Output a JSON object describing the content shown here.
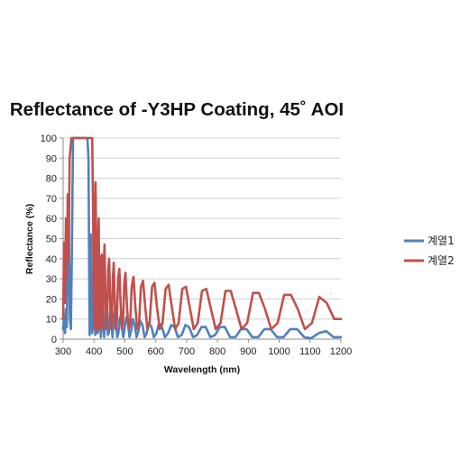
{
  "chart_data": {
    "type": "line",
    "title": "Reflectance of -Y3HP Coating, 45˚ AOI",
    "xlabel": "Wavelength (nm)",
    "ylabel": "Reflectance (%)",
    "xlim": [
      300,
      1200
    ],
    "ylim": [
      0,
      100
    ],
    "x_ticks": [
      300,
      400,
      500,
      600,
      700,
      800,
      900,
      1000,
      1100,
      1200
    ],
    "y_ticks": [
      0,
      10,
      20,
      30,
      40,
      50,
      60,
      70,
      80,
      90,
      100
    ],
    "grid": "horizontal",
    "legend_position": "right",
    "series": [
      {
        "name": "계열1",
        "color": "#4f81bd",
        "x": [
          300,
          303,
          306,
          309,
          312,
          315,
          318,
          320,
          322,
          325,
          328,
          332,
          338,
          345,
          355,
          365,
          372,
          376,
          379,
          382,
          384,
          386,
          388,
          390,
          392,
          394,
          396,
          398,
          400,
          402,
          404,
          406,
          408,
          410,
          412,
          414,
          416,
          418,
          420,
          422,
          424,
          426,
          428,
          430,
          433,
          436,
          439,
          442,
          445,
          448,
          451,
          454,
          457,
          460,
          463,
          467,
          471,
          475,
          479,
          483,
          487,
          491,
          495,
          500,
          505,
          510,
          515,
          520,
          526,
          532,
          538,
          544,
          550,
          557,
          564,
          571,
          578,
          586,
          594,
          602,
          611,
          620,
          630,
          640,
          650,
          661,
          672,
          684,
          696,
          708,
          721,
          734,
          748,
          762,
          777,
          792,
          808,
          824,
          841,
          858,
          876,
          894,
          913,
          932,
          952,
          972,
          993,
          1014,
          1036,
          1058,
          1081,
          1104,
          1128,
          1152,
          1176,
          1200
        ],
        "values": [
          5,
          12,
          3,
          15,
          6,
          45,
          60,
          35,
          10,
          5,
          40,
          100,
          100,
          100,
          100,
          100,
          100,
          100,
          99,
          90,
          45,
          2,
          20,
          52,
          10,
          3,
          8,
          30,
          40,
          12,
          2,
          8,
          25,
          18,
          3,
          5,
          20,
          28,
          10,
          1,
          6,
          18,
          20,
          8,
          1,
          10,
          18,
          12,
          2,
          3,
          12,
          15,
          6,
          1,
          8,
          14,
          9,
          1,
          3,
          10,
          12,
          5,
          1,
          6,
          11,
          8,
          1,
          4,
          10,
          7,
          1,
          4,
          9,
          7,
          1,
          3,
          8,
          6,
          1,
          3,
          8,
          6,
          1,
          3,
          7,
          6,
          1,
          2,
          7,
          6,
          1,
          2,
          6,
          6,
          1,
          2,
          6,
          6,
          1,
          1,
          5,
          5,
          1,
          1,
          5,
          5,
          1,
          1,
          5,
          5,
          1,
          0.5,
          3,
          4,
          1,
          1
        ]
      },
      {
        "name": "계열2",
        "color": "#c0504d",
        "x": [
          300,
          303,
          306,
          309,
          312,
          315,
          318,
          321,
          324,
          327,
          330,
          335,
          340,
          350,
          360,
          370,
          380,
          385,
          388,
          391,
          394,
          397,
          399,
          401,
          403,
          405,
          407,
          409,
          411,
          413,
          415,
          417,
          419,
          421,
          423,
          425,
          427,
          429,
          431,
          434,
          437,
          440,
          443,
          446,
          449,
          452,
          455,
          458,
          461,
          464,
          467,
          470,
          474,
          478,
          482,
          486,
          490,
          494,
          498,
          502,
          507,
          512,
          517,
          522,
          528,
          534,
          540,
          546,
          552,
          559,
          566,
          573,
          580,
          588,
          596,
          604,
          613,
          622,
          632,
          642,
          652,
          663,
          674,
          686,
          698,
          710,
          723,
          736,
          750,
          764,
          779,
          794,
          810,
          826,
          843,
          860,
          878,
          896,
          915,
          934,
          954,
          974,
          995,
          1016,
          1038,
          1060,
          1083,
          1106,
          1130,
          1154,
          1178,
          1200
        ],
        "values": [
          10,
          48,
          18,
          60,
          30,
          72,
          40,
          90,
          95,
          100,
          100,
          100,
          100,
          100,
          100,
          100,
          100,
          100,
          100,
          100,
          100,
          65,
          20,
          5,
          60,
          78,
          50,
          8,
          4,
          45,
          60,
          30,
          5,
          8,
          40,
          42,
          15,
          5,
          35,
          47,
          20,
          5,
          12,
          35,
          40,
          22,
          5,
          10,
          30,
          38,
          20,
          5,
          8,
          30,
          35,
          18,
          5,
          8,
          28,
          33,
          16,
          5,
          8,
          26,
          31,
          16,
          5,
          8,
          26,
          29,
          16,
          5,
          8,
          26,
          28,
          16,
          5,
          8,
          25,
          27,
          16,
          5,
          8,
          25,
          26,
          16,
          5,
          8,
          24,
          25,
          15,
          5,
          8,
          24,
          24,
          15,
          5,
          8,
          23,
          23,
          15,
          5,
          8,
          22,
          22,
          15,
          5,
          8,
          21,
          18,
          10,
          10
        ]
      }
    ]
  }
}
